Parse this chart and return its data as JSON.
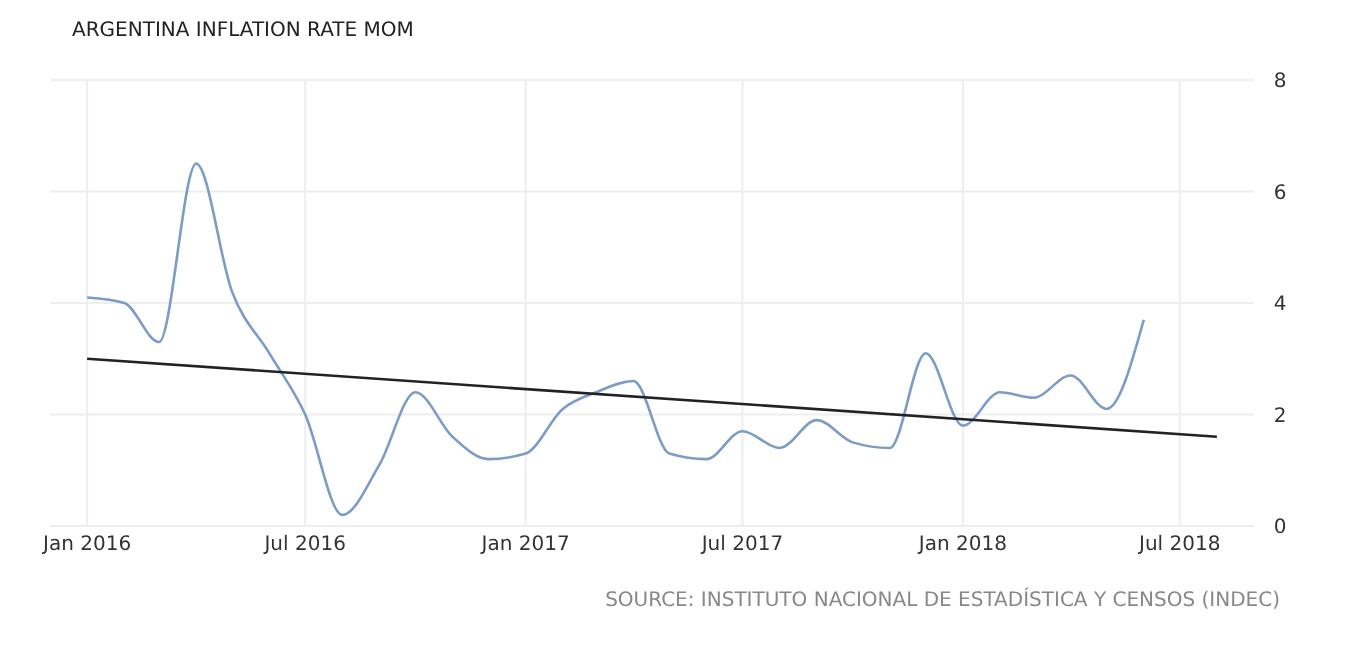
{
  "chart_data": {
    "type": "line",
    "title": "ARGENTINA INFLATION RATE MOM",
    "x": [
      "2016-01",
      "2016-02",
      "2016-03",
      "2016-04",
      "2016-05",
      "2016-06",
      "2016-07",
      "2016-08",
      "2016-09",
      "2016-10",
      "2016-11",
      "2016-12",
      "2017-01",
      "2017-02",
      "2017-03",
      "2017-04",
      "2017-05",
      "2017-06",
      "2017-07",
      "2017-08",
      "2017-09",
      "2017-10",
      "2017-11",
      "2017-12",
      "2018-01",
      "2018-02",
      "2018-03",
      "2018-04",
      "2018-05",
      "2018-06"
    ],
    "series": [
      {
        "color": "#7a9cc6",
        "values": [
          4.1,
          4.0,
          3.3,
          6.5,
          4.2,
          3.1,
          2.0,
          0.2,
          1.1,
          2.4,
          1.6,
          1.2,
          1.3,
          2.1,
          2.4,
          2.6,
          1.3,
          1.2,
          1.7,
          1.4,
          1.9,
          1.5,
          1.4,
          3.1,
          1.8,
          2.4,
          2.3,
          2.7,
          2.1,
          3.7
        ]
      },
      {
        "type": "line",
        "color": "#222222",
        "x": [
          "2016-01",
          "2018-08"
        ],
        "values": [
          3.0,
          1.6
        ]
      }
    ],
    "xlim": [
      "2015-12-01",
      "2018-09-01"
    ],
    "xticks": [
      {
        "value": "2016-01",
        "label": "Jan 2016"
      },
      {
        "value": "2016-07",
        "label": "Jul 2016"
      },
      {
        "value": "2017-01",
        "label": "Jan 2017"
      },
      {
        "value": "2017-07",
        "label": "Jul 2017"
      },
      {
        "value": "2018-01",
        "label": "Jan 2018"
      },
      {
        "value": "2018-07",
        "label": "Jul 2018"
      }
    ],
    "ylim": [
      0,
      8
    ],
    "yticks": [
      0,
      2,
      4,
      6,
      8
    ],
    "grid": true,
    "annotations": [
      "SOURCE: INSTITUTO NACIONAL DE ESTADÍSTICA Y CENSOS (INDEC)"
    ]
  }
}
